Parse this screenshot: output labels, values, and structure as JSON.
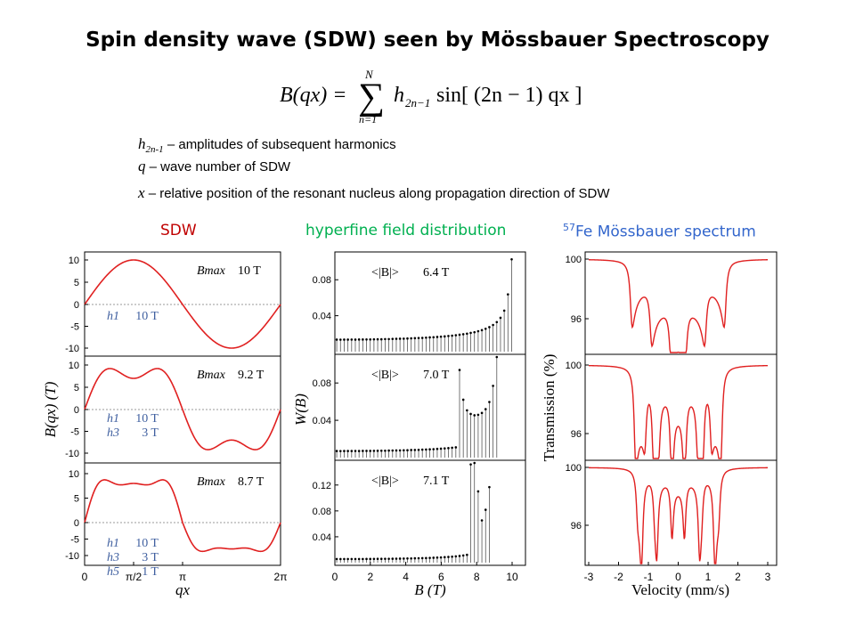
{
  "title": "Spin density wave (SDW) seen by Mössbauer Spectroscopy",
  "formula": {
    "lhs": "B(qx) =",
    "sum_top": "N",
    "sum_bottom": "n=1",
    "term": "h",
    "term_sub": "2n−1",
    "rhs": "sin[ (2n − 1) qx ]"
  },
  "definitions": [
    {
      "sym": "h",
      "sub": "2n-1",
      "text": " – amplitudes of subsequent harmonics"
    },
    {
      "sym": "q",
      "sub": "",
      "text": " – wave number of SDW"
    },
    {
      "sym": "x",
      "sub": "",
      "text": " – relative position of the resonant nucleus along propagation direction of SDW"
    }
  ],
  "headers": {
    "sdw": "SDW",
    "hyperfine": "hyperfine field distribution",
    "moss_sup": "57",
    "moss": "Fe Mössbauer spectrum"
  },
  "colors": {
    "sdw": "#c00000",
    "hyperfine": "#00b050",
    "moss": "#3366cc",
    "curve": "#e02020",
    "label_blue": "#4060a0"
  },
  "chart_data": [
    {
      "type": "line",
      "title": "SDW",
      "xlabel": "qx",
      "ylabel": "B(qx) (T)",
      "xlim": [
        0,
        6.2832
      ],
      "x_ticks": [
        "0",
        "π/2",
        "π",
        "2π"
      ],
      "ylim": [
        -12,
        12
      ],
      "y_ticks": [
        "10",
        "5",
        "0",
        "-5",
        "-10"
      ],
      "panels": [
        {
          "bmax_label": "Bmax",
          "bmax": "10 T",
          "harmonics": [
            {
              "name": "h1",
              "val": "10 T"
            }
          ],
          "h": [
            10
          ]
        },
        {
          "bmax_label": "Bmax",
          "bmax": "9.2 T",
          "harmonics": [
            {
              "name": "h1",
              "val": "10 T"
            },
            {
              "name": "h3",
              "val": "3 T"
            }
          ],
          "h": [
            10,
            3
          ]
        },
        {
          "bmax_label": "Bmax",
          "bmax": "8.7 T",
          "harmonics": [
            {
              "name": "h1",
              "val": "10 T"
            },
            {
              "name": "h3",
              "val": "3 T"
            },
            {
              "name": "h5",
              "val": "1 T"
            }
          ],
          "h": [
            10,
            3,
            1
          ]
        }
      ]
    },
    {
      "type": "bar",
      "title": "hyperfine field distribution",
      "xlabel": "B (T)",
      "ylabel": "W(B)",
      "xlim": [
        0,
        11
      ],
      "x_ticks": [
        "0",
        "2",
        "4",
        "6",
        "8",
        "10"
      ],
      "panels": [
        {
          "avg_label": "<|B|>",
          "avg": "6.4 T",
          "ylim": [
            0,
            0.105
          ],
          "y_ticks": [
            "0.08",
            "0.04"
          ],
          "h": [
            10
          ]
        },
        {
          "avg_label": "<|B|>",
          "avg": "7.0 T",
          "ylim": [
            0,
            0.105
          ],
          "y_ticks": [
            "0.08",
            "0.04"
          ],
          "h": [
            10,
            3
          ]
        },
        {
          "avg_label": "<|B|>",
          "avg": "7.1 T",
          "ylim": [
            0,
            0.15
          ],
          "y_ticks": [
            "0.12",
            "0.08",
            "0.04"
          ],
          "h": [
            10,
            3,
            1
          ]
        }
      ]
    },
    {
      "type": "line",
      "title": "57Fe Mössbauer spectrum",
      "xlabel": "Velocity (mm/s)",
      "ylabel": "Transmission (%)",
      "xlim": [
        -3,
        3
      ],
      "x_ticks": [
        "-3",
        "-2",
        "-1",
        "0",
        "1",
        "2",
        "3"
      ],
      "panels": [
        {
          "ylim": [
            93,
            100.5
          ],
          "y_ticks": [
            "100",
            "96"
          ]
        },
        {
          "ylim": [
            93,
            100.5
          ],
          "y_ticks": [
            "100",
            "96"
          ]
        },
        {
          "ylim": [
            93,
            100.5
          ],
          "y_ticks": [
            "100",
            "96"
          ]
        }
      ]
    }
  ]
}
